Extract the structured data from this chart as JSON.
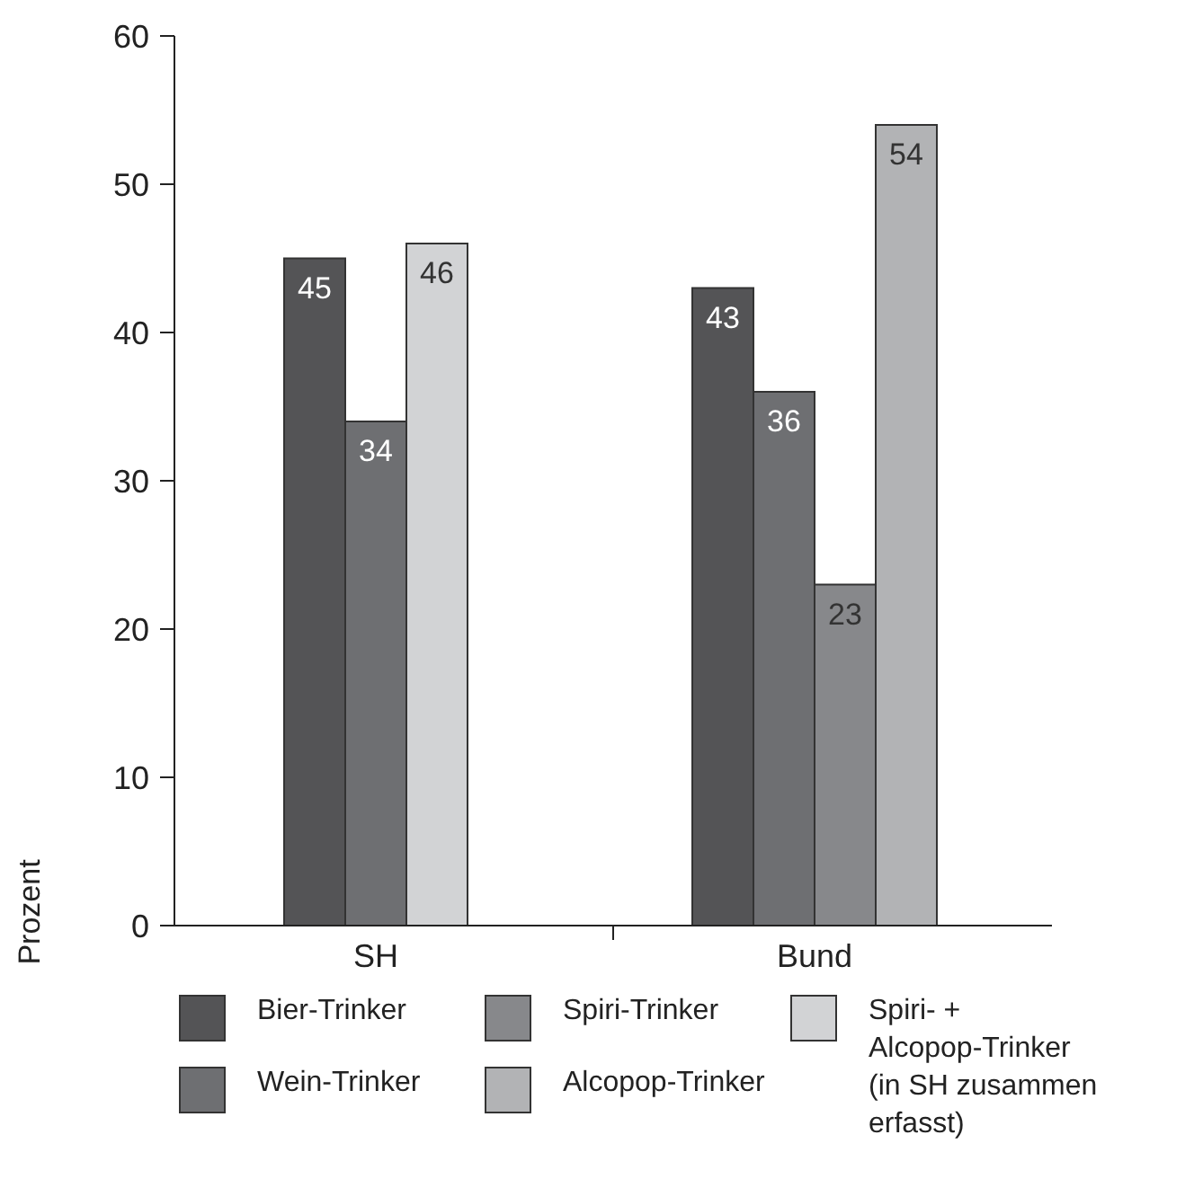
{
  "chart_data": {
    "type": "bar",
    "ylabel": "Prozent",
    "categories": [
      "SH",
      "Bund"
    ],
    "series": [
      {
        "name": "Bier-Trinker",
        "color": "#545456",
        "values": [
          45,
          43
        ]
      },
      {
        "name": "Wein-Trinker",
        "color": "#6e6f72",
        "values": [
          34,
          36
        ]
      },
      {
        "name": "Spiri-Trinker",
        "color": "#87888b",
        "values": [
          null,
          23
        ]
      },
      {
        "name": "Alcopop-Trinker",
        "color": "#b2b3b5",
        "values": [
          null,
          54
        ]
      },
      {
        "name": "Spiri- + Alcopop-Trinker (in SH zusammen erfasst)",
        "color": "#d2d3d5",
        "values": [
          46,
          null
        ]
      }
    ],
    "ylim": [
      0,
      60
    ],
    "yticks": [
      0,
      10,
      20,
      30,
      40,
      50,
      60
    ],
    "data_labels": true,
    "legend": "bottom"
  }
}
